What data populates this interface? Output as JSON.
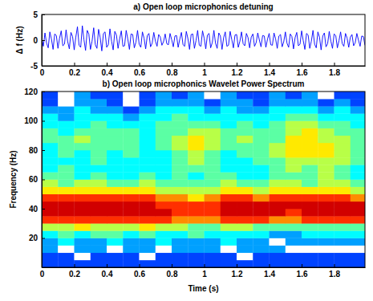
{
  "chart_data": [
    {
      "type": "line",
      "title": "a) Open loop microphonics detuning",
      "y_label": "Δ f (Hz)",
      "color": "#0000ff",
      "xlim": [
        0,
        1.99
      ],
      "xticks": [
        0,
        0.2,
        0.4,
        0.6,
        0.8,
        1,
        1.2,
        1.4,
        1.6,
        1.8
      ],
      "ylim": [
        -5,
        5
      ],
      "yticks": [
        -5,
        0,
        5
      ],
      "grid": false,
      "x": [
        0,
        0.01,
        0.02,
        0.03,
        0.04,
        0.05,
        0.06,
        0.07,
        0.08,
        0.09,
        0.1,
        0.11,
        0.12,
        0.13,
        0.14,
        0.15,
        0.16,
        0.17,
        0.18,
        0.19,
        0.2,
        0.21,
        0.22,
        0.23,
        0.24,
        0.25,
        0.26,
        0.27,
        0.28,
        0.29,
        0.3,
        0.31,
        0.32,
        0.33,
        0.34,
        0.35,
        0.36,
        0.37,
        0.38,
        0.39,
        0.4,
        0.41,
        0.42,
        0.43,
        0.44,
        0.45,
        0.46,
        0.47,
        0.48,
        0.49,
        0.5,
        0.51,
        0.52,
        0.53,
        0.54,
        0.55,
        0.56,
        0.57,
        0.58,
        0.59,
        0.6,
        0.61,
        0.62,
        0.63,
        0.64,
        0.65,
        0.66,
        0.67,
        0.68,
        0.69,
        0.7,
        0.71,
        0.72,
        0.73,
        0.74,
        0.75,
        0.76,
        0.77,
        0.78,
        0.79,
        0.8,
        0.81,
        0.82,
        0.83,
        0.84,
        0.85,
        0.86,
        0.87,
        0.88,
        0.89,
        0.9,
        0.91,
        0.92,
        0.93,
        0.94,
        0.95,
        0.96,
        0.97,
        0.98,
        0.99,
        1,
        1.01,
        1.02,
        1.03,
        1.04,
        1.05,
        1.06,
        1.07,
        1.08,
        1.09,
        1.1,
        1.11,
        1.12,
        1.13,
        1.14,
        1.15,
        1.16,
        1.17,
        1.18,
        1.19,
        1.2,
        1.21,
        1.22,
        1.23,
        1.24,
        1.25,
        1.26,
        1.27,
        1.28,
        1.29,
        1.3,
        1.31,
        1.32,
        1.33,
        1.34,
        1.35,
        1.36,
        1.37,
        1.38,
        1.39,
        1.4,
        1.41,
        1.42,
        1.43,
        1.44,
        1.45,
        1.46,
        1.47,
        1.48,
        1.49,
        1.5,
        1.51,
        1.52,
        1.53,
        1.54,
        1.55,
        1.56,
        1.57,
        1.58,
        1.59,
        1.6,
        1.61,
        1.62,
        1.63,
        1.64,
        1.65,
        1.66,
        1.67,
        1.68,
        1.69,
        1.7,
        1.71,
        1.72,
        1.73,
        1.74,
        1.75,
        1.76,
        1.77,
        1.78,
        1.79,
        1.8,
        1.81,
        1.82,
        1.83,
        1.84,
        1.85,
        1.86,
        1.87,
        1.88,
        1.89,
        1.9,
        1.91,
        1.92,
        1.93,
        1.94,
        1.95,
        1.96,
        1.97,
        1.98,
        1.99
      ],
      "values": [
        0.5,
        -1.2,
        1.4,
        -0.6,
        -1.5,
        1.6,
        0.2,
        -1.8,
        1.2,
        0.9,
        -1.6,
        0.4,
        1.8,
        -1.1,
        -0.8,
        2.0,
        -0.3,
        -1.7,
        1.5,
        0.7,
        -1.9,
        0.6,
        2.6,
        -1.0,
        -1.4,
        2.8,
        0.1,
        -2.0,
        1.9,
        1.2,
        -1.8,
        -0.2,
        2.4,
        -0.9,
        -1.6,
        2.1,
        0.5,
        -2.1,
        1.3,
        1.6,
        -1.4,
        -0.9,
        2.2,
        -0.2,
        -1.9,
        1.7,
        1.0,
        -1.6,
        0.3,
        1.8,
        -1.2,
        -1.1,
        1.9,
        0.2,
        -1.8,
        1.2,
        1.1,
        -1.5,
        -0.4,
        1.9,
        -0.8,
        -1.4,
        1.6,
        0.4,
        -1.7,
        0.9,
        1.3,
        -1.3,
        -0.6,
        1.5,
        -0.2,
        -1.2,
        1.1,
        0.6,
        -1.0,
        -0.3,
        1.2,
        -0.7,
        -0.9,
        1.3,
        0.1,
        -1.3,
        0.8,
        0.9,
        -1.4,
        0.2,
        1.5,
        -0.9,
        -1.2,
        1.7,
        0.3,
        -1.8,
        1.1,
        1.2,
        -1.6,
        -0.1,
        1.9,
        -1.0,
        -1.2,
        1.8,
        0.4,
        -1.7,
        1.0,
        1.3,
        -1.5,
        -0.5,
        1.9,
        -0.6,
        -1.6,
        1.4,
        0.8,
        -1.8,
        0.5,
        1.6,
        -1.2,
        -1.0,
        1.7,
        0.1,
        -1.5,
        1.0,
        1.1,
        -1.4,
        -0.2,
        1.6,
        -0.7,
        -1.1,
        1.3,
        0.5,
        -1.5,
        0.6,
        1.2,
        -1.2,
        -0.5,
        1.4,
        0.0,
        -1.3,
        0.9,
        0.8,
        -1.4,
        0.2,
        1.3,
        -0.9,
        -1.0,
        1.4,
        0.2,
        -1.6,
        0.8,
        1.1,
        -1.3,
        -0.3,
        1.6,
        -0.6,
        -1.4,
        1.2,
        0.7,
        -1.7,
        0.5,
        1.5,
        -1.1,
        -0.8,
        1.8,
        -0.1,
        -1.8,
        1.3,
        1.0,
        -1.6,
        -0.2,
        1.9,
        -0.8,
        -1.5,
        1.6,
        0.6,
        -1.9,
        0.8,
        1.4,
        -1.3,
        -0.7,
        1.7,
        -0.2,
        -1.6,
        1.2,
        0.9,
        -1.5,
        -0.1,
        1.6,
        -0.7,
        -1.2,
        1.3,
        0.4,
        -1.4,
        0.6,
        1.1,
        -1.1,
        -0.5,
        1.3,
        0.0,
        -1.2,
        0.8,
        0.7,
        -1.0
      ]
    },
    {
      "type": "heatmap",
      "title": "b) Open loop microphonics Wavelet Power Spectrum",
      "x_label": "Time (s)",
      "y_label": "Frequency (Hz)",
      "xlim": [
        0,
        1.99
      ],
      "xticks": [
        0,
        0.2,
        0.4,
        0.6,
        0.8,
        1,
        1.2,
        1.4,
        1.6,
        1.8
      ],
      "ylim": [
        0,
        120
      ],
      "yticks": [
        20,
        40,
        60,
        80,
        100,
        120
      ],
      "grid": false,
      "color_range": [
        0,
        9
      ],
      "x_edges": [
        0,
        0.1,
        0.2,
        0.3,
        0.4,
        0.5,
        0.6,
        0.7,
        0.8,
        0.9,
        1,
        1.1,
        1.2,
        1.3,
        1.4,
        1.5,
        1.6,
        1.7,
        1.8,
        1.9,
        2
      ],
      "y_edges": [
        0,
        5,
        10,
        15,
        20,
        25,
        30,
        35,
        40,
        45,
        50,
        55,
        60,
        65,
        70,
        75,
        80,
        85,
        90,
        95,
        100,
        105,
        110,
        115,
        120
      ],
      "cells": [
        [
          1,
          1,
          1,
          1,
          1,
          1,
          1,
          1,
          1,
          1,
          1,
          1,
          1,
          1,
          1,
          1,
          1,
          1,
          1,
          1
        ],
        [
          1,
          1,
          0,
          1,
          1,
          1,
          0,
          1,
          1,
          1,
          1,
          1,
          0,
          1,
          1,
          1,
          1,
          1,
          1,
          1
        ],
        [
          2,
          0,
          2,
          2,
          0,
          2,
          2,
          0,
          2,
          2,
          2,
          0,
          2,
          2,
          2,
          0,
          0,
          0,
          0,
          0
        ],
        [
          2,
          3,
          2,
          2,
          3,
          2,
          2,
          3,
          2,
          2,
          2,
          3,
          2,
          2,
          0,
          2,
          2,
          2,
          2,
          2
        ],
        [
          3,
          4,
          3,
          4,
          4,
          3,
          4,
          3,
          3,
          4,
          3,
          3,
          3,
          3,
          2,
          2,
          3,
          3,
          3,
          3
        ],
        [
          5,
          5,
          6,
          5,
          5,
          5,
          6,
          5,
          5,
          4,
          4,
          5,
          5,
          4,
          4,
          4,
          4,
          4,
          4,
          4
        ],
        [
          8,
          8,
          8,
          8,
          8,
          8,
          8,
          8,
          7,
          7,
          7,
          8,
          8,
          8,
          7,
          7,
          8,
          8,
          8,
          8
        ],
        [
          9,
          9,
          9,
          9,
          9,
          9,
          9,
          9,
          8,
          8,
          8,
          9,
          9,
          9,
          9,
          8,
          9,
          9,
          9,
          9
        ],
        [
          9,
          9,
          9,
          9,
          9,
          9,
          9,
          8,
          8,
          8,
          8,
          9,
          9,
          9,
          9,
          9,
          9,
          9,
          9,
          9
        ],
        [
          8,
          8,
          8,
          8,
          8,
          8,
          8,
          7,
          7,
          6,
          7,
          8,
          8,
          7,
          8,
          8,
          8,
          8,
          8,
          7
        ],
        [
          6,
          6,
          6,
          6,
          6,
          6,
          6,
          5,
          5,
          5,
          5,
          6,
          6,
          5,
          6,
          6,
          6,
          6,
          6,
          5
        ],
        [
          5,
          4,
          5,
          5,
          4,
          4,
          5,
          4,
          4,
          4,
          4,
          5,
          4,
          4,
          5,
          5,
          4,
          5,
          5,
          4
        ],
        [
          4,
          4,
          3,
          4,
          3,
          3,
          4,
          3,
          4,
          3,
          4,
          4,
          3,
          3,
          4,
          4,
          4,
          5,
          4,
          3
        ],
        [
          3,
          4,
          3,
          3,
          3,
          3,
          3,
          3,
          4,
          4,
          4,
          3,
          3,
          3,
          4,
          5,
          4,
          5,
          4,
          3
        ],
        [
          3,
          3,
          3,
          4,
          3,
          3,
          3,
          3,
          4,
          5,
          4,
          3,
          3,
          4,
          4,
          5,
          5,
          5,
          5,
          4
        ],
        [
          3,
          4,
          3,
          4,
          3,
          4,
          3,
          3,
          4,
          5,
          4,
          3,
          4,
          4,
          5,
          6,
          6,
          6,
          5,
          4
        ],
        [
          3,
          4,
          4,
          4,
          4,
          4,
          3,
          4,
          5,
          6,
          5,
          4,
          4,
          4,
          5,
          6,
          6,
          6,
          5,
          4
        ],
        [
          4,
          4,
          5,
          4,
          4,
          4,
          3,
          4,
          5,
          6,
          5,
          4,
          5,
          4,
          4,
          6,
          6,
          5,
          5,
          4
        ],
        [
          4,
          3,
          4,
          4,
          4,
          4,
          3,
          4,
          4,
          5,
          5,
          4,
          4,
          4,
          4,
          5,
          6,
          5,
          4,
          4
        ],
        [
          3,
          3,
          3,
          4,
          3,
          3,
          3,
          4,
          4,
          4,
          4,
          3,
          4,
          3,
          4,
          5,
          5,
          4,
          4,
          3
        ],
        [
          3,
          2,
          3,
          3,
          3,
          2,
          3,
          3,
          4,
          3,
          3,
          3,
          3,
          3,
          3,
          4,
          4,
          3,
          3,
          3
        ],
        [
          2,
          2,
          3,
          2,
          2,
          1,
          2,
          3,
          3,
          3,
          2,
          3,
          2,
          2,
          3,
          3,
          3,
          2,
          3,
          2
        ],
        [
          1,
          0,
          2,
          2,
          1,
          0,
          1,
          2,
          2,
          2,
          1,
          2,
          2,
          1,
          2,
          2,
          2,
          1,
          2,
          1
        ],
        [
          1,
          0,
          2,
          1,
          1,
          0,
          1,
          2,
          1,
          2,
          0,
          2,
          1,
          1,
          2,
          1,
          2,
          0,
          1,
          1
        ]
      ]
    }
  ]
}
